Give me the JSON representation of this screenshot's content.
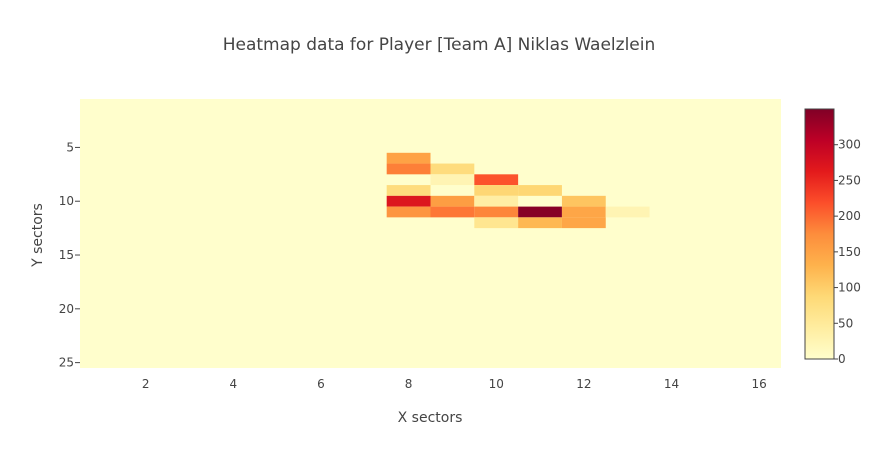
{
  "chart_data": {
    "type": "heatmap",
    "title": "Heatmap data for Player [Team A] Niklas Waelzlein",
    "xlabel": "X sectors",
    "ylabel": "Y sectors",
    "x_range": [
      0.5,
      16.5
    ],
    "y_range": [
      0.5,
      25.5
    ],
    "y_reversed": true,
    "x_ticks": [
      "2",
      "4",
      "6",
      "8",
      "10",
      "12",
      "14",
      "16"
    ],
    "y_ticks": [
      "5",
      "10",
      "15",
      "20",
      "25"
    ],
    "background_value": 0,
    "z_range": [
      0,
      350
    ],
    "colorscale": [
      "#fffecc",
      "#ffeda0",
      "#fed976",
      "#feb24c",
      "#fd8d3c",
      "#fc4e2a",
      "#e31a1c",
      "#bd0026",
      "#800026"
    ],
    "colorbar_ticks": [
      "0",
      "50",
      "100",
      "150",
      "200",
      "250",
      "300"
    ],
    "cells": [
      {
        "x": 8,
        "y": 6,
        "value": 150
      },
      {
        "x": 8,
        "y": 7,
        "value": 185
      },
      {
        "x": 8,
        "y": 9,
        "value": 80
      },
      {
        "x": 8,
        "y": 10,
        "value": 270
      },
      {
        "x": 8,
        "y": 11,
        "value": 165
      },
      {
        "x": 9,
        "y": 7,
        "value": 80
      },
      {
        "x": 9,
        "y": 8,
        "value": 25
      },
      {
        "x": 9,
        "y": 10,
        "value": 155
      },
      {
        "x": 9,
        "y": 11,
        "value": 190
      },
      {
        "x": 10,
        "y": 8,
        "value": 215
      },
      {
        "x": 10,
        "y": 9,
        "value": 90
      },
      {
        "x": 10,
        "y": 10,
        "value": 40
      },
      {
        "x": 10,
        "y": 11,
        "value": 180
      },
      {
        "x": 10,
        "y": 12,
        "value": 60
      },
      {
        "x": 11,
        "y": 9,
        "value": 90
      },
      {
        "x": 11,
        "y": 11,
        "value": 345
      },
      {
        "x": 11,
        "y": 12,
        "value": 125
      },
      {
        "x": 12,
        "y": 10,
        "value": 110
      },
      {
        "x": 12,
        "y": 11,
        "value": 145
      },
      {
        "x": 12,
        "y": 12,
        "value": 145
      },
      {
        "x": 13,
        "y": 11,
        "value": 25
      }
    ]
  }
}
